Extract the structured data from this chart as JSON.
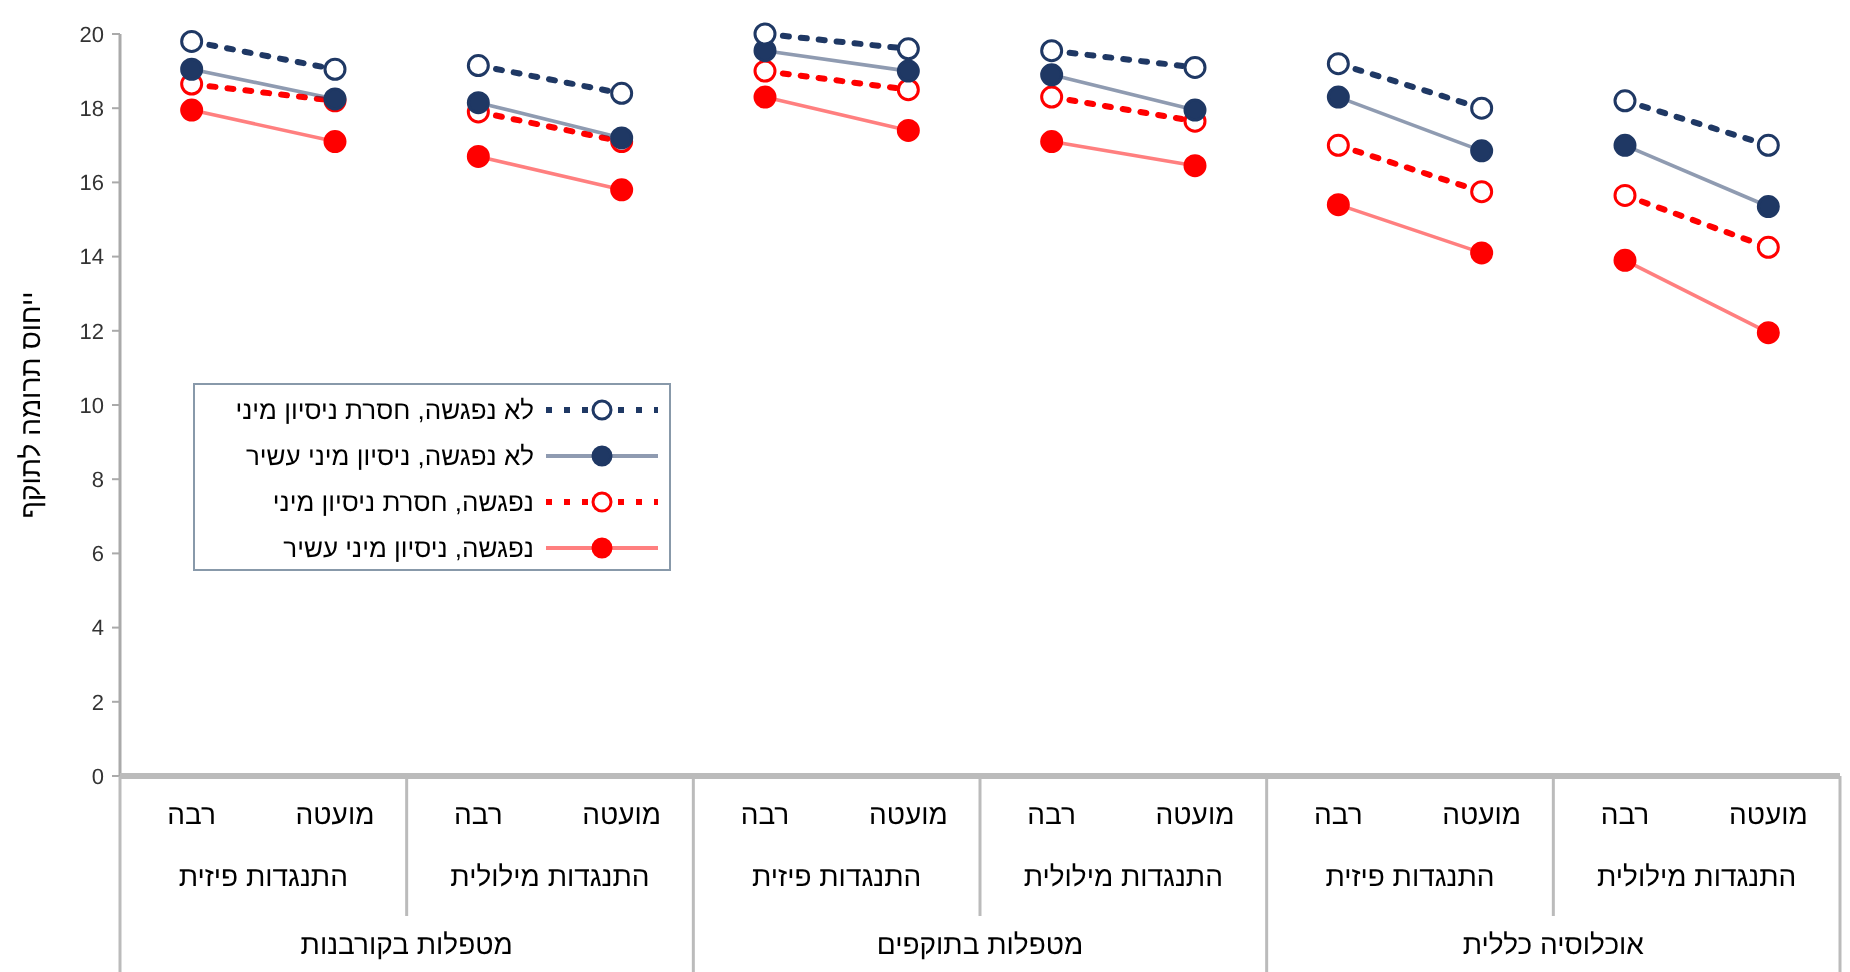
{
  "chart_data": {
    "type": "line",
    "ylabel": "ייחוס תרומה לתוקף",
    "categories": [
      "רבה",
      "מועטה",
      "רבה",
      "מועטה",
      "רבה",
      "מועטה",
      "רבה",
      "מועטה",
      "רבה",
      "מועטה",
      "רבה",
      "מועטה"
    ],
    "annotations": [
      "התנגדות פיזית",
      "התנגדות מילולית",
      "התנגדות פיזית",
      "התנגדות מילולית",
      "התנגדות פיזית",
      "התנגדות מילולית",
      "מטפלות בקורבנות",
      "מטפלות בתוקפים",
      "אוכלוסיה כללית"
    ],
    "series": [
      {
        "name": "לא נפגשה, חסרת ניסיון מיני",
        "color": "#1f3864",
        "line_style": "dotted",
        "values": [
          19.8,
          19.05,
          19.15,
          18.4,
          20.0,
          19.6,
          19.55,
          19.1,
          19.2,
          18.0,
          18.2,
          17.0
        ]
      },
      {
        "name": "לא נפגשה, ניסיון מיני עשיר",
        "color": "#1f3864",
        "line_style": "solid",
        "values": [
          19.05,
          18.25,
          18.15,
          17.2,
          19.55,
          19.0,
          18.9,
          17.95,
          18.3,
          16.85,
          17.0,
          15.35
        ]
      },
      {
        "name": "נפגשה, חסרת ניסיון מיני",
        "color": "#ff0000",
        "line_style": "dotted",
        "values": [
          18.65,
          18.2,
          17.9,
          17.1,
          19.0,
          18.5,
          18.3,
          17.65,
          17.0,
          15.75,
          15.65,
          14.25
        ]
      },
      {
        "name": "נפגשה, ניסיון מיני עשיר",
        "color": "#ff0000",
        "line_style": "solid",
        "values": [
          17.95,
          17.1,
          16.7,
          15.8,
          18.3,
          17.4,
          17.1,
          16.45,
          15.4,
          14.1,
          13.9,
          11.95
        ]
      }
    ],
    "ylim": [
      0,
      20
    ],
    "yticks": [
      0,
      2,
      4,
      6,
      8,
      10,
      12,
      14,
      16,
      18,
      20
    ],
    "grid": false,
    "legend": "left",
    "marker": "circle"
  }
}
